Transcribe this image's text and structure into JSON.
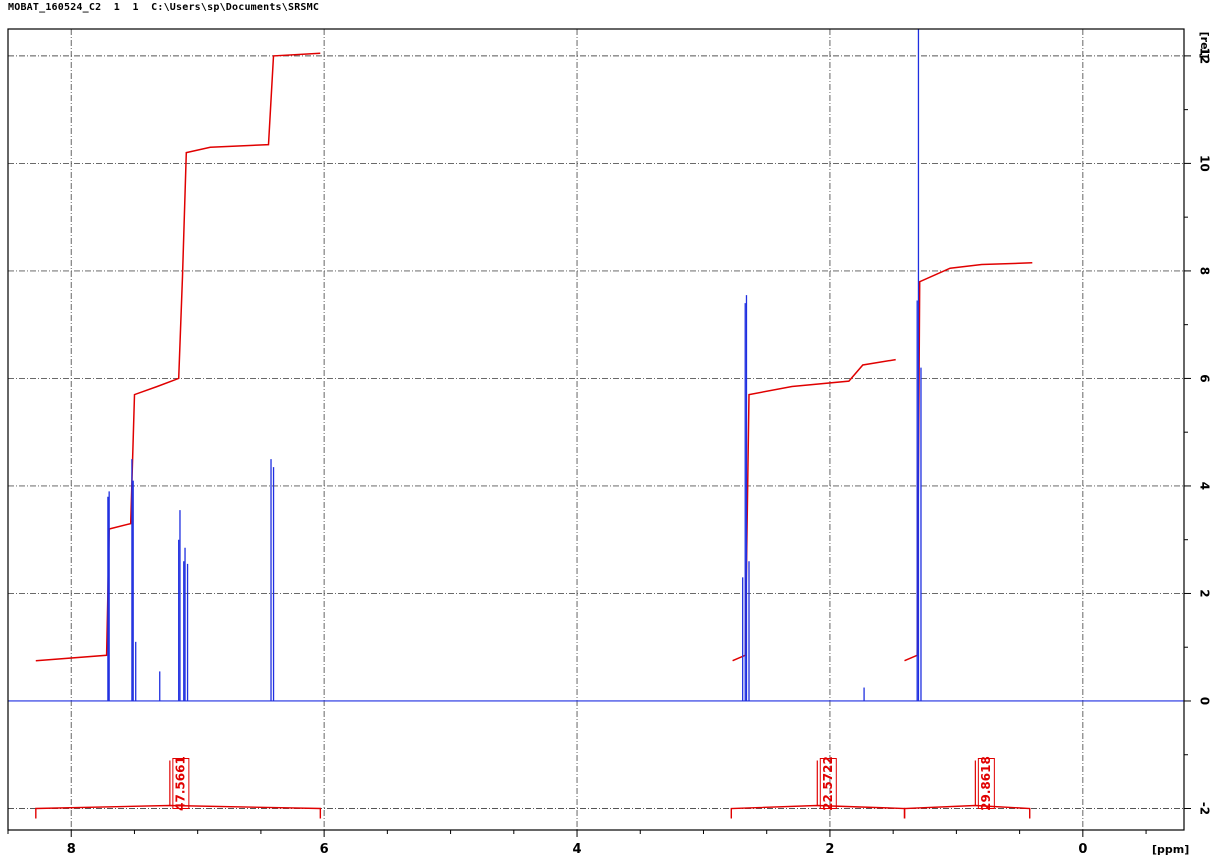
{
  "header": {
    "dataset": "MOBAT_160524_C2",
    "expno": "1",
    "procno": "1",
    "path": "C:\\Users\\sp\\Documents\\SRSMC"
  },
  "colors": {
    "spectrum": "#1f2fe0",
    "integral": "#e00000",
    "grid": "#555555",
    "frame": "#000000"
  },
  "chart_data": {
    "type": "line",
    "title": "",
    "xlabel": "[ppm]",
    "ylabel": "[rel]",
    "x_reversed": true,
    "xlim": [
      8.5,
      -0.8
    ],
    "ylim": [
      -2.4,
      12.5
    ],
    "grid": true,
    "x_ticks": [
      8,
      6,
      4,
      2,
      0
    ],
    "y_ticks": [
      12,
      10,
      8,
      6,
      4,
      2,
      0,
      -2
    ],
    "y_tick_labels": [
      "12",
      "10",
      "8",
      "6",
      "4",
      "2",
      "0",
      "-2"
    ],
    "x_tick_labels": [
      "8",
      "6",
      "4",
      "2",
      "0"
    ],
    "series": [
      {
        "kind": "spectrum",
        "baseline": 0,
        "peaks": [
          {
            "ppm": 7.71,
            "height": 3.8
          },
          {
            "ppm": 7.7,
            "height": 3.9
          },
          {
            "ppm": 7.52,
            "height": 4.5
          },
          {
            "ppm": 7.51,
            "height": 4.1
          },
          {
            "ppm": 7.49,
            "height": 1.1
          },
          {
            "ppm": 7.3,
            "height": 0.55
          },
          {
            "ppm": 7.15,
            "height": 3.0
          },
          {
            "ppm": 7.14,
            "height": 3.55
          },
          {
            "ppm": 7.11,
            "height": 2.6
          },
          {
            "ppm": 7.1,
            "height": 2.85
          },
          {
            "ppm": 7.08,
            "height": 2.55
          },
          {
            "ppm": 6.42,
            "height": 4.5
          },
          {
            "ppm": 6.4,
            "height": 4.35
          },
          {
            "ppm": 2.69,
            "height": 2.3
          },
          {
            "ppm": 2.67,
            "height": 7.4
          },
          {
            "ppm": 2.66,
            "height": 7.55
          },
          {
            "ppm": 2.64,
            "height": 2.6
          },
          {
            "ppm": 1.73,
            "height": 0.25
          },
          {
            "ppm": 1.31,
            "height": 7.45
          },
          {
            "ppm": 1.3,
            "height": 12.5
          },
          {
            "ppm": 1.28,
            "height": 6.2
          }
        ]
      },
      {
        "kind": "integral_curve",
        "segments": [
          [
            [
              8.28,
              0.75
            ],
            [
              7.72,
              0.85
            ],
            [
              7.7,
              3.2
            ],
            [
              7.53,
              3.3
            ],
            [
              7.5,
              5.7
            ],
            [
              7.32,
              5.85
            ],
            [
              7.15,
              6.0
            ],
            [
              7.12,
              7.9
            ],
            [
              7.09,
              10.2
            ],
            [
              6.9,
              10.3
            ],
            [
              6.44,
              10.35
            ],
            [
              6.4,
              12.0
            ],
            [
              6.03,
              12.05
            ]
          ],
          [
            [
              2.77,
              0.75
            ],
            [
              2.67,
              0.85
            ],
            [
              2.64,
              5.7
            ],
            [
              2.3,
              5.85
            ],
            [
              1.85,
              5.95
            ],
            [
              1.74,
              6.25
            ],
            [
              1.48,
              6.35
            ]
          ],
          [
            [
              1.41,
              0.75
            ],
            [
              1.31,
              0.85
            ],
            [
              1.29,
              7.8
            ],
            [
              1.05,
              8.05
            ],
            [
              0.8,
              8.12
            ],
            [
              0.4,
              8.15
            ]
          ]
        ]
      }
    ],
    "integrals": [
      {
        "from": 8.28,
        "to": 6.03,
        "label_ppm": 7.22,
        "value": "47.5661"
      },
      {
        "from": 2.78,
        "to": 1.41,
        "label_ppm": 2.1,
        "value": "22.5722"
      },
      {
        "from": 1.41,
        "to": 0.42,
        "label_ppm": 0.85,
        "value": "29.8618"
      }
    ]
  }
}
